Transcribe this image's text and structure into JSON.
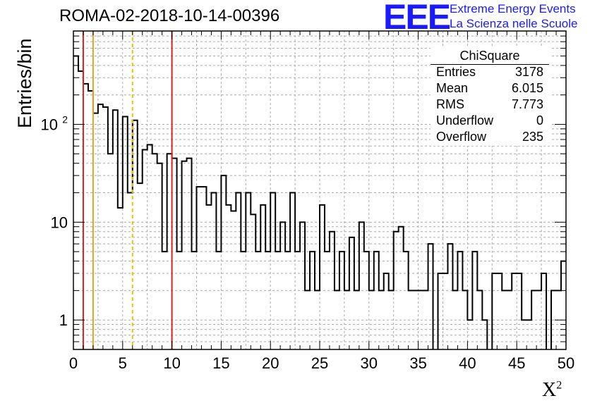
{
  "title": "ROMA-02-2018-10-14-00396",
  "logo": {
    "mark": "EEE",
    "line1": "Extreme Energy Events",
    "line2": "La Scienza nelle Scuole",
    "color": "#1a1aff"
  },
  "stats": {
    "name": "ChiSquare",
    "rows": [
      {
        "key": "Entries",
        "value": "3178"
      },
      {
        "key": "Mean",
        "value": "6.015"
      },
      {
        "key": "RMS",
        "value": "7.773"
      },
      {
        "key": "Underflow",
        "value": "0"
      },
      {
        "key": "Overflow",
        "value": "235"
      }
    ]
  },
  "chart_data": {
    "type": "histogram",
    "xlabel": "X",
    "xlabel_sup": "2",
    "ylabel": "Entries/bin",
    "xlim": [
      0,
      50
    ],
    "ylim": [
      0.5,
      900
    ],
    "yscale": "log",
    "grid": true,
    "bin_width": 0.5,
    "x_ticks": [
      "0",
      "5",
      "10",
      "15",
      "20",
      "25",
      "30",
      "35",
      "40",
      "45",
      "50"
    ],
    "y_ticks": [
      {
        "value": 1,
        "label": "1"
      },
      {
        "value": 10,
        "label": "10"
      },
      {
        "value": 100,
        "label": "10",
        "sup": "2"
      }
    ],
    "values": [
      500,
      350,
      260,
      220,
      130,
      160,
      150,
      50,
      140,
      14,
      120,
      20,
      110,
      25,
      55,
      62,
      50,
      40,
      5,
      50,
      45,
      5,
      42,
      45,
      5,
      23,
      23,
      15,
      20,
      5,
      30,
      15,
      13,
      20,
      5,
      20,
      12,
      5,
      15,
      5,
      20,
      5,
      10,
      5,
      20,
      5,
      10,
      2,
      5,
      2,
      15,
      5,
      8,
      2,
      5,
      2,
      7,
      2,
      10,
      5,
      2,
      5,
      2,
      3,
      2,
      8,
      9,
      5,
      2,
      2,
      2,
      2,
      6,
      0,
      3,
      3,
      6,
      2,
      5,
      2,
      1,
      5,
      2,
      1,
      0,
      3,
      3,
      2,
      2,
      3,
      3,
      1,
      1,
      2,
      2,
      3,
      0,
      2,
      2,
      4
    ],
    "vlines": [
      {
        "x": 1,
        "color": "#e02020",
        "style": "solid"
      },
      {
        "x": 2,
        "color": "#f0a020",
        "style": "solid"
      },
      {
        "x": 6,
        "color": "#f0c000",
        "style": "dashed"
      },
      {
        "x": 10,
        "color": "#e02020",
        "style": "solid"
      }
    ]
  }
}
